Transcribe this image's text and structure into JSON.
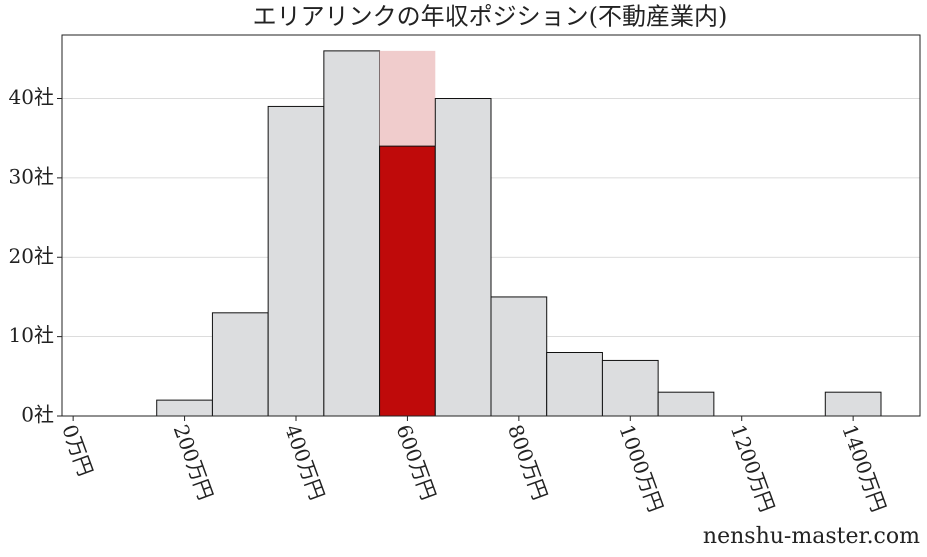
{
  "chart_data": {
    "type": "histogram",
    "title": "エリアリンクの年収ポジション(不動産業内)",
    "bins": [
      150,
      250,
      350,
      450,
      550,
      650,
      750,
      850,
      950,
      1050,
      1150,
      1250,
      1350,
      1450
    ],
    "values": [
      2,
      13,
      39,
      46,
      34,
      40,
      15,
      8,
      7,
      3,
      0,
      0,
      3
    ],
    "color": "#dcdddf",
    "highlight": {
      "bin": 4,
      "color": "#bf0a0a",
      "band_color": "#f0cccc"
    },
    "xlim": [
      -20,
      1520
    ],
    "xticks": [
      {
        "value": 0,
        "label": "0万円"
      },
      {
        "value": 200,
        "label": "200万円"
      },
      {
        "value": 400,
        "label": "400万円"
      },
      {
        "value": 600,
        "label": "600万円"
      },
      {
        "value": 800,
        "label": "800万円"
      },
      {
        "value": 1000,
        "label": "1000万円"
      },
      {
        "value": 1200,
        "label": "1200万円"
      },
      {
        "value": 1400,
        "label": "1400万円"
      }
    ],
    "ylim": [
      0,
      48
    ],
    "yticks": [
      {
        "value": 0,
        "label": "0社"
      },
      {
        "value": 10,
        "label": "10社"
      },
      {
        "value": 20,
        "label": "20社"
      },
      {
        "value": 30,
        "label": "30社"
      },
      {
        "value": 40,
        "label": "40社"
      }
    ],
    "grid": true,
    "watermark": "nenshu-master.com"
  }
}
